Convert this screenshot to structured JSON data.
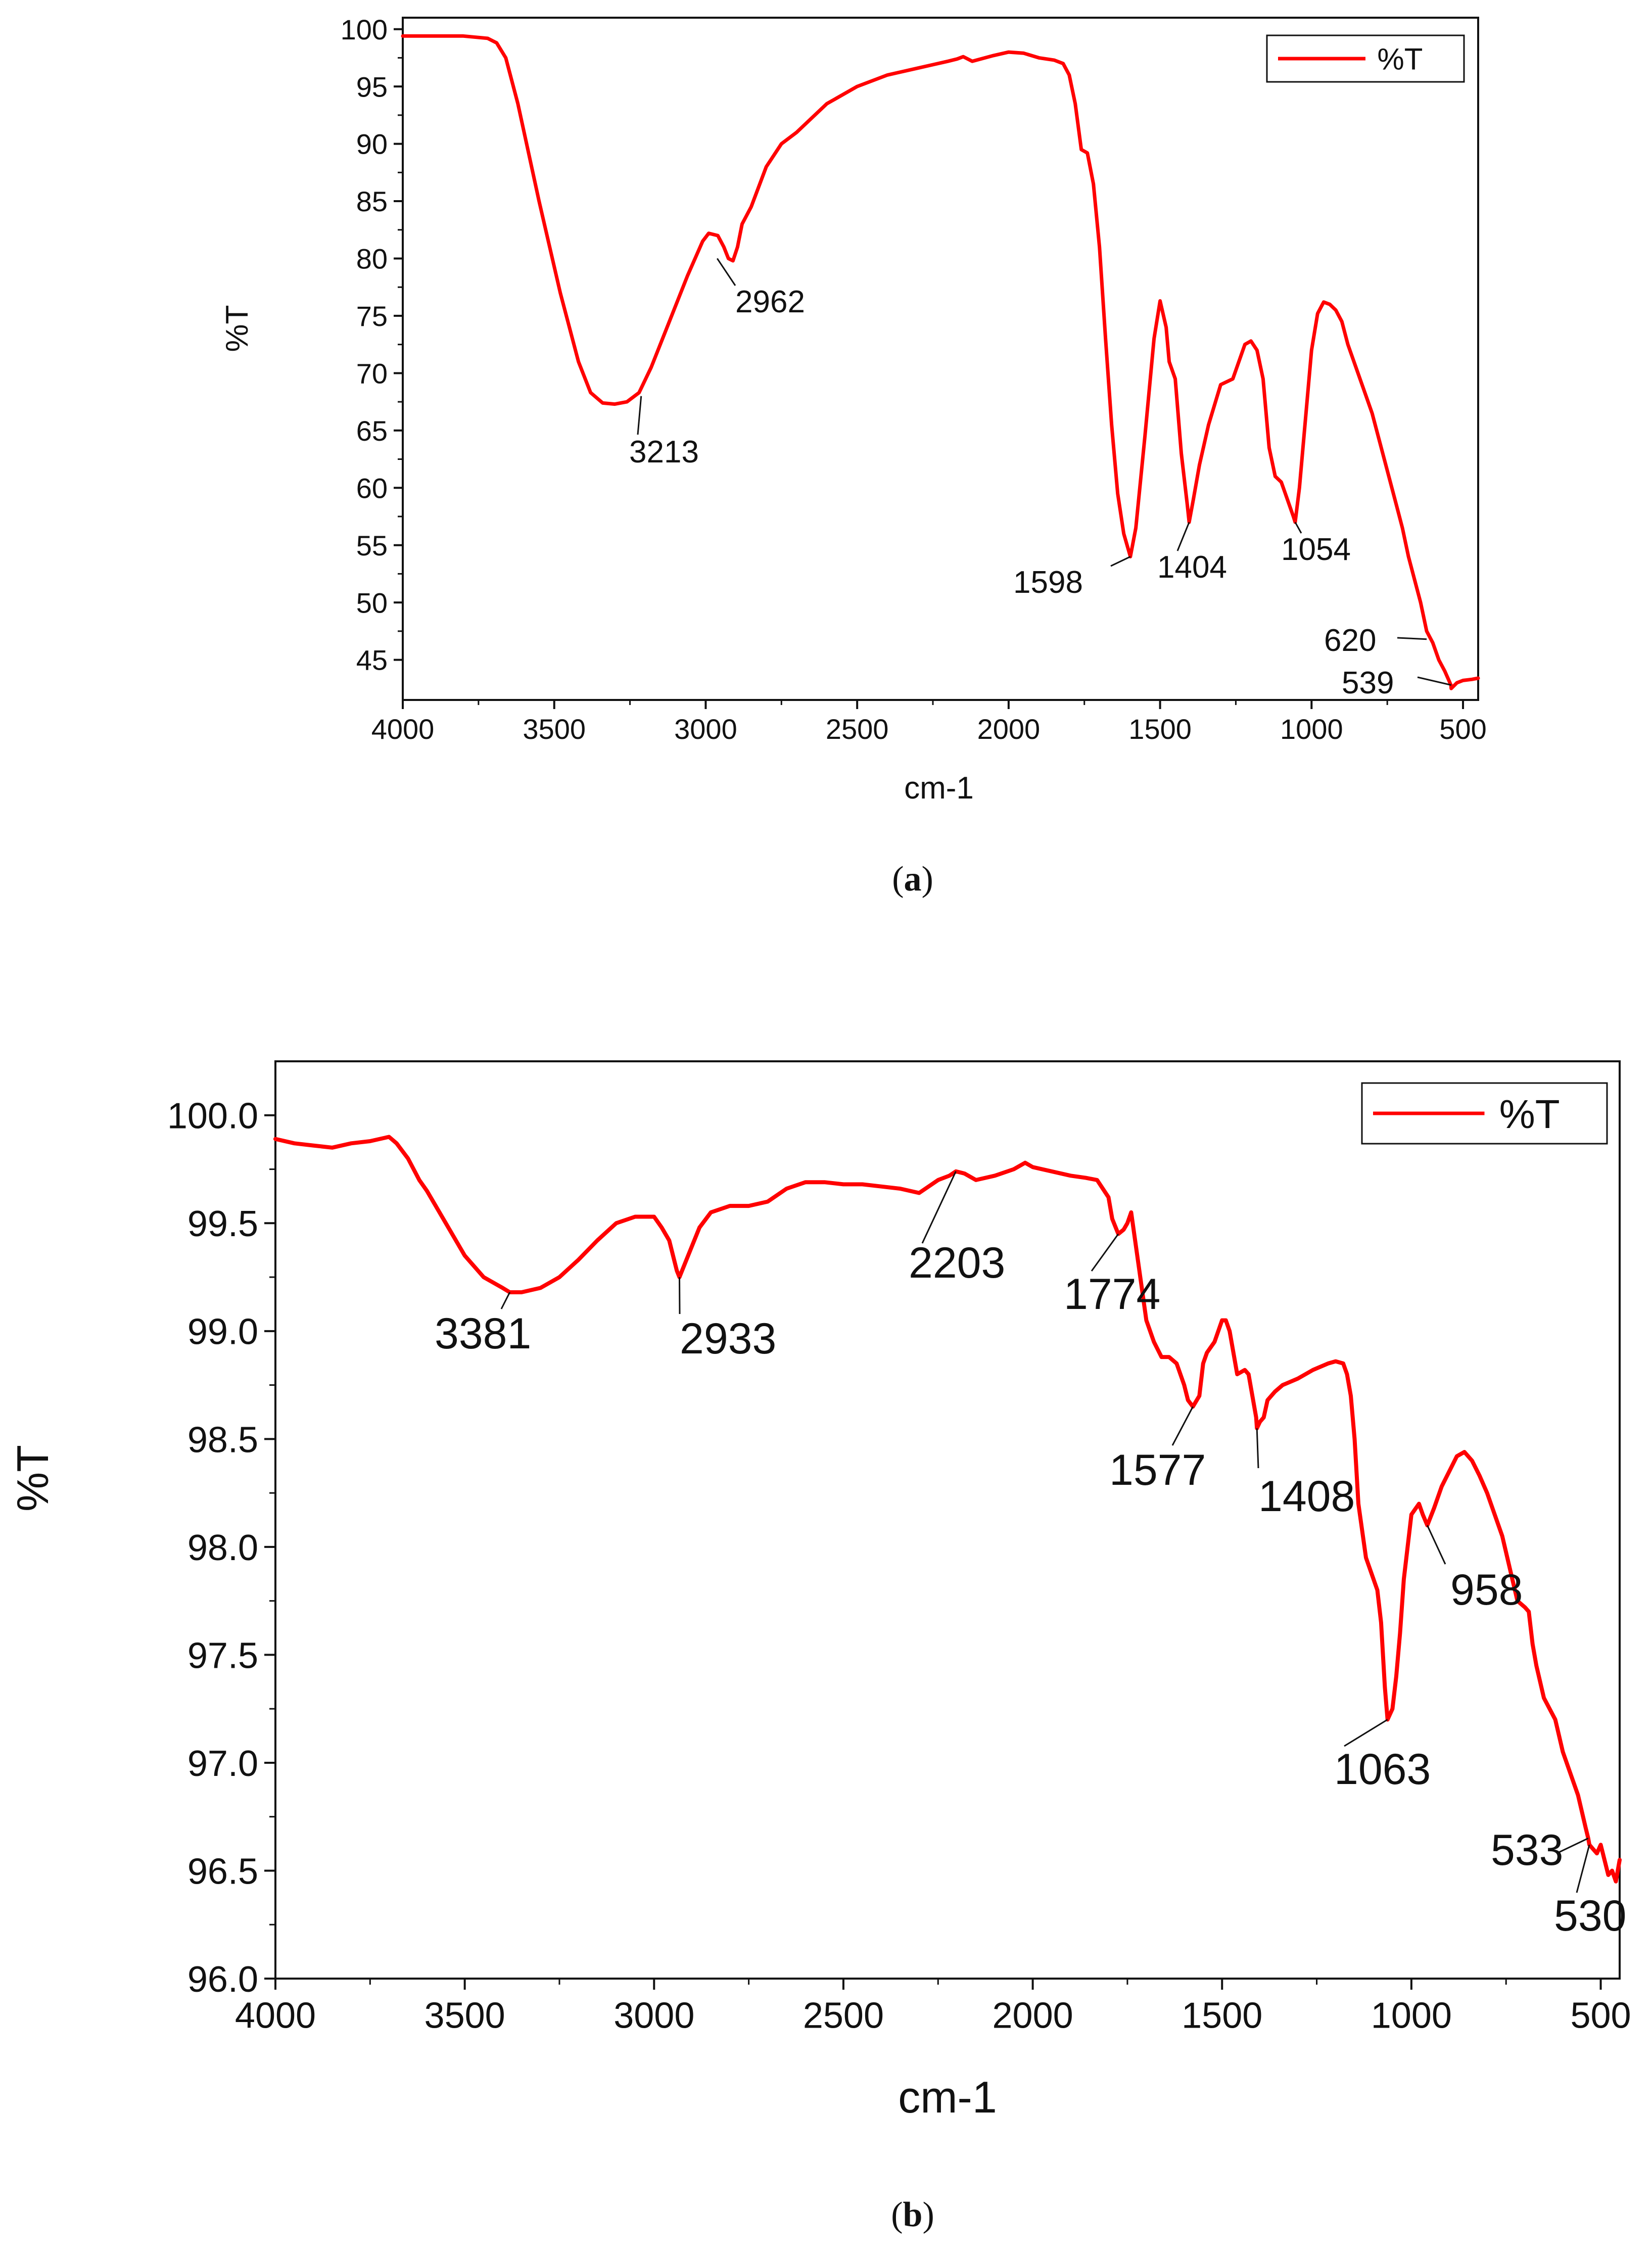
{
  "chart_data": [
    {
      "type": "line",
      "panel_label": "a",
      "xlabel": "cm-1",
      "ylabel": "%T",
      "xlim": [
        4000,
        450
      ],
      "ylim": [
        41.5,
        101
      ],
      "x_ticks": [
        4000,
        3500,
        3000,
        2500,
        2000,
        1500,
        1000,
        500
      ],
      "y_ticks": [
        45,
        50,
        55,
        60,
        65,
        70,
        75,
        80,
        85,
        90,
        95,
        100
      ],
      "grid": false,
      "legend_position": "top-right",
      "series": [
        {
          "name": "%T",
          "color": "#ff0000",
          "x": [
            4000,
            3800,
            3720,
            3690,
            3660,
            3620,
            3550,
            3480,
            3420,
            3380,
            3340,
            3300,
            3260,
            3220,
            3180,
            3120,
            3060,
            3010,
            2990,
            2960,
            2940,
            2925,
            2910,
            2895,
            2880,
            2850,
            2800,
            2750,
            2700,
            2600,
            2500,
            2400,
            2300,
            2250,
            2200,
            2170,
            2150,
            2120,
            2050,
            2000,
            1950,
            1900,
            1850,
            1820,
            1800,
            1780,
            1760,
            1740,
            1720,
            1700,
            1680,
            1660,
            1640,
            1620,
            1598,
            1580,
            1550,
            1520,
            1500,
            1480,
            1470,
            1450,
            1430,
            1410,
            1404,
            1390,
            1370,
            1340,
            1300,
            1260,
            1220,
            1200,
            1180,
            1160,
            1140,
            1120,
            1100,
            1080,
            1060,
            1054,
            1040,
            1020,
            1000,
            980,
            960,
            940,
            920,
            900,
            880,
            860,
            840,
            820,
            800,
            780,
            760,
            740,
            720,
            700,
            680,
            660,
            640,
            620,
            600,
            580,
            560,
            540,
            539,
            520,
            500,
            470,
            450
          ],
          "y": [
            99.4,
            99.4,
            99.2,
            98.8,
            97.5,
            93.5,
            85.0,
            77.0,
            71.0,
            68.3,
            67.4,
            67.3,
            67.5,
            68.3,
            70.5,
            74.5,
            78.5,
            81.5,
            82.2,
            82.0,
            81.0,
            80.0,
            79.8,
            81.0,
            83.0,
            84.5,
            88.0,
            90.0,
            91.0,
            93.5,
            95.0,
            96.0,
            96.6,
            96.9,
            97.2,
            97.4,
            97.6,
            97.2,
            97.7,
            98.0,
            97.9,
            97.5,
            97.3,
            97.0,
            96.0,
            93.5,
            89.5,
            89.2,
            86.5,
            81.0,
            73.0,
            65.5,
            59.5,
            56.0,
            54.0,
            56.5,
            64.5,
            73.0,
            76.3,
            74.0,
            71.0,
            69.5,
            63.0,
            58.5,
            57.0,
            59.0,
            62.0,
            65.5,
            69.0,
            69.5,
            72.5,
            72.8,
            72.0,
            69.5,
            63.5,
            61.0,
            60.5,
            59.0,
            57.5,
            57.0,
            60.0,
            66.0,
            72.0,
            75.2,
            76.2,
            76.0,
            75.5,
            74.5,
            72.5,
            71.0,
            69.5,
            68.0,
            66.5,
            64.5,
            62.5,
            60.5,
            58.5,
            56.5,
            54.0,
            52.0,
            50.0,
            47.5,
            46.5,
            45.0,
            44.0,
            42.8,
            42.5,
            43.0,
            43.2,
            43.3,
            43.4
          ]
        }
      ],
      "annotations": [
        {
          "label": "3213",
          "x": 3213,
          "y": 68.0
        },
        {
          "label": "2962",
          "x": 2962,
          "y": 80.0
        },
        {
          "label": "1598",
          "x": 1598,
          "y": 54.0
        },
        {
          "label": "1404",
          "x": 1404,
          "y": 57.0
        },
        {
          "label": "1054",
          "x": 1054,
          "y": 57.0
        },
        {
          "label": "620",
          "x": 620,
          "y": 46.8
        },
        {
          "label": "539",
          "x": 539,
          "y": 42.8
        }
      ]
    },
    {
      "type": "line",
      "panel_label": "b",
      "xlabel": "cm-1",
      "ylabel": "%T",
      "xlim": [
        4000,
        450
      ],
      "ylim": [
        96.0,
        100.25
      ],
      "x_ticks": [
        4000,
        3500,
        3000,
        2500,
        2000,
        1500,
        1000,
        500
      ],
      "y_ticks": [
        "96.0",
        "96.5",
        "97.0",
        "97.5",
        "98.0",
        "98.5",
        "99.0",
        "99.5",
        "100.0"
      ],
      "grid": false,
      "legend_position": "top-right",
      "series": [
        {
          "name": "%T",
          "color": "#ff0000",
          "x": [
            4000,
            3950,
            3900,
            3850,
            3800,
            3750,
            3700,
            3680,
            3650,
            3620,
            3600,
            3550,
            3500,
            3450,
            3400,
            3381,
            3350,
            3300,
            3250,
            3200,
            3150,
            3100,
            3050,
            3000,
            2980,
            2960,
            2950,
            2940,
            2933,
            2910,
            2880,
            2850,
            2800,
            2750,
            2700,
            2650,
            2600,
            2550,
            2500,
            2450,
            2400,
            2350,
            2300,
            2250,
            2220,
            2203,
            2180,
            2150,
            2100,
            2050,
            2020,
            2000,
            1950,
            1900,
            1860,
            1830,
            1800,
            1790,
            1774,
            1760,
            1750,
            1740,
            1720,
            1700,
            1680,
            1660,
            1640,
            1620,
            1600,
            1590,
            1577,
            1560,
            1550,
            1540,
            1520,
            1500,
            1490,
            1480,
            1460,
            1440,
            1430,
            1420,
            1410,
            1408,
            1400,
            1390,
            1380,
            1360,
            1340,
            1300,
            1260,
            1220,
            1200,
            1180,
            1170,
            1160,
            1150,
            1140,
            1120,
            1100,
            1090,
            1080,
            1070,
            1063,
            1050,
            1040,
            1030,
            1020,
            1000,
            980,
            970,
            958,
            940,
            920,
            900,
            880,
            860,
            840,
            820,
            800,
            780,
            760,
            740,
            720,
            700,
            690,
            680,
            670,
            650,
            620,
            600,
            580,
            560,
            540,
            533,
            530,
            520,
            510,
            500,
            490,
            480,
            470,
            460,
            450
          ],
          "y": [
            99.89,
            99.87,
            99.86,
            99.85,
            99.87,
            99.88,
            99.9,
            99.87,
            99.8,
            99.7,
            99.65,
            99.5,
            99.35,
            99.25,
            99.2,
            99.18,
            99.18,
            99.2,
            99.25,
            99.33,
            99.42,
            99.5,
            99.53,
            99.53,
            99.48,
            99.42,
            99.35,
            99.28,
            99.25,
            99.35,
            99.48,
            99.55,
            99.58,
            99.58,
            99.6,
            99.66,
            99.69,
            99.69,
            99.68,
            99.68,
            99.67,
            99.66,
            99.64,
            99.7,
            99.72,
            99.74,
            99.73,
            99.7,
            99.72,
            99.75,
            99.78,
            99.76,
            99.74,
            99.72,
            99.71,
            99.7,
            99.62,
            99.52,
            99.45,
            99.47,
            99.5,
            99.55,
            99.3,
            99.05,
            98.95,
            98.88,
            98.88,
            98.85,
            98.75,
            98.68,
            98.65,
            98.7,
            98.85,
            98.9,
            98.95,
            99.05,
            99.05,
            99.0,
            98.8,
            98.82,
            98.8,
            98.7,
            98.6,
            98.55,
            98.58,
            98.6,
            98.68,
            98.72,
            98.75,
            98.78,
            98.82,
            98.85,
            98.86,
            98.85,
            98.8,
            98.7,
            98.5,
            98.2,
            97.95,
            97.85,
            97.8,
            97.65,
            97.35,
            97.2,
            97.25,
            97.4,
            97.6,
            97.85,
            98.15,
            98.2,
            98.15,
            98.1,
            98.18,
            98.28,
            98.35,
            98.42,
            98.44,
            98.4,
            98.33,
            98.25,
            98.15,
            98.05,
            97.9,
            97.75,
            97.72,
            97.7,
            97.55,
            97.45,
            97.3,
            97.2,
            97.05,
            96.95,
            96.85,
            96.7,
            96.65,
            96.62,
            96.6,
            96.58,
            96.62,
            96.55,
            96.48,
            96.5,
            96.45,
            96.55
          ]
        }
      ],
      "annotations": [
        {
          "label": "3381",
          "x": 3381,
          "y": 99.18
        },
        {
          "label": "2933",
          "x": 2933,
          "y": 99.25
        },
        {
          "label": "2203",
          "x": 2203,
          "y": 99.74
        },
        {
          "label": "1774",
          "x": 1774,
          "y": 99.45
        },
        {
          "label": "1577",
          "x": 1577,
          "y": 98.65
        },
        {
          "label": "1408",
          "x": 1408,
          "y": 98.55
        },
        {
          "label": "958",
          "x": 958,
          "y": 98.1
        },
        {
          "label": "1063",
          "x": 1063,
          "y": 97.2
        },
        {
          "label": "533",
          "x": 533,
          "y": 96.65
        },
        {
          "label": "530",
          "x": 530,
          "y": 96.62
        }
      ]
    }
  ]
}
